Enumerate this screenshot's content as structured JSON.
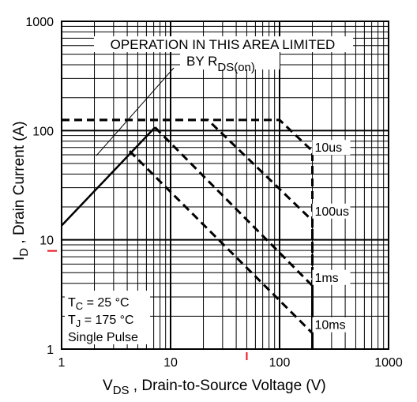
{
  "chart_data": {
    "type": "line",
    "scale": {
      "x": "log",
      "y": "log"
    },
    "xlim": [
      1,
      1000
    ],
    "ylim": [
      1,
      1000
    ],
    "grid": true,
    "x_ticks": [
      {
        "value": 1,
        "label": "1"
      },
      {
        "value": 10,
        "label": "10"
      },
      {
        "value": 100,
        "label": "100"
      },
      {
        "value": 1000,
        "label": "1000"
      }
    ],
    "y_ticks": [
      {
        "value": 1,
        "label": "1"
      },
      {
        "value": 10,
        "label": "10"
      },
      {
        "value": 100,
        "label": "100"
      },
      {
        "value": 1000,
        "label": "1000"
      }
    ],
    "xlabel": {
      "main": "V",
      "sub": "DS",
      "rest": " , Drain-to-Source Voltage (V)"
    },
    "ylabel": {
      "main": "I",
      "sub": "D",
      "rest": " , Drain Current (A)"
    },
    "rds_limit": {
      "x": [
        1,
        7.2
      ],
      "y": [
        13.5,
        107
      ]
    },
    "series": [
      {
        "name": "10us",
        "label_at": [
          210,
          65
        ],
        "x": [
          1,
          100,
          200,
          200
        ],
        "y": [
          125,
          125,
          65,
          1
        ]
      },
      {
        "name": "100us",
        "label_at": [
          210,
          17
        ],
        "x": [
          1,
          22,
          200,
          200
        ],
        "y": [
          125,
          125,
          15,
          1
        ]
      },
      {
        "name": "1ms",
        "label_at": [
          210,
          4.2
        ],
        "x": [
          7.2,
          200,
          200
        ],
        "y": [
          107,
          3.8,
          1
        ]
      },
      {
        "name": "10ms",
        "label_at": [
          210,
          1.55
        ],
        "x": [
          4.2,
          200,
          200
        ],
        "y": [
          65,
          1.4,
          1
        ]
      }
    ],
    "annotations": {
      "area_title_line1": "OPERATION IN THIS AREA LIMITED",
      "area_title_line2": "BY R",
      "area_title_sub": "DS(on)",
      "tc_main": "T",
      "tc_sub": "C",
      "tc_value": " = 25 °C",
      "tj_main": "T",
      "tj_sub": "J",
      "tj_value": " = 175 °C",
      "pulse": "Single Pulse"
    },
    "colors": {
      "plot": "#000000",
      "marker": "#e8141c",
      "background": "#ffffff"
    }
  }
}
